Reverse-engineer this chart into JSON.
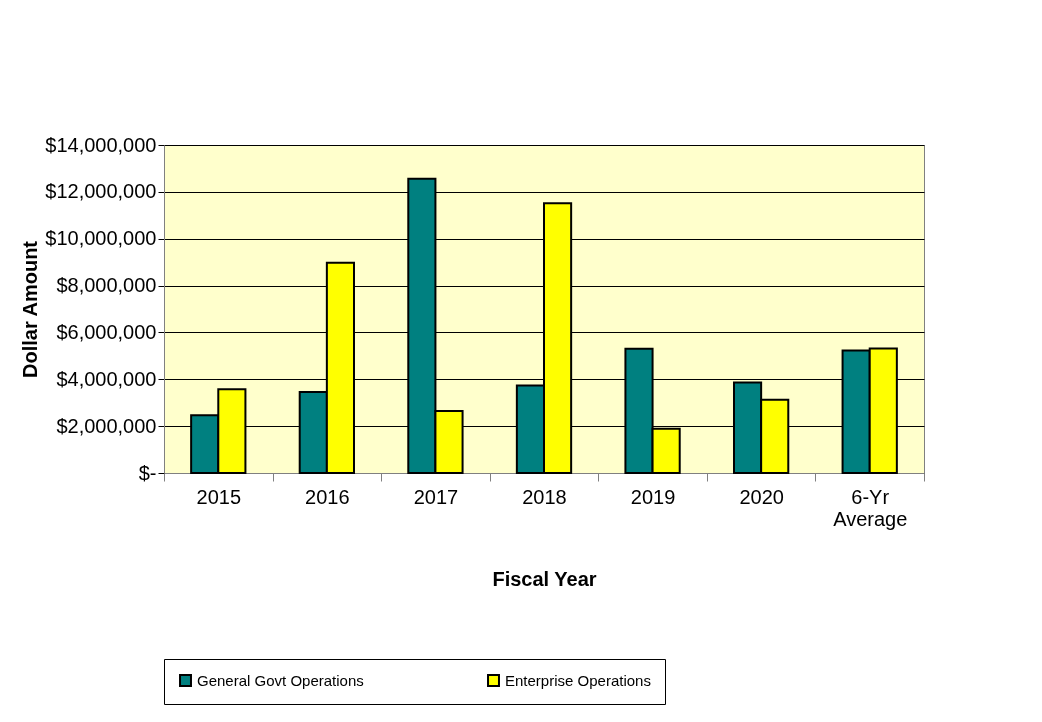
{
  "chart_data": {
    "type": "bar",
    "xlabel": "Fiscal Year",
    "ylabel": "Dollar Amount",
    "categories": [
      "2015",
      "2016",
      "2017",
      "2018",
      "2019",
      "2020",
      "6-Yr Average"
    ],
    "series": [
      {
        "name": "General Govt Operations",
        "color": "#008080",
        "values": [
          2460000,
          3460000,
          12560000,
          3730000,
          5300000,
          3860000,
          5230000
        ]
      },
      {
        "name": "Enterprise Operations",
        "color": "#ffff00",
        "values": [
          3580000,
          8970000,
          2650000,
          11510000,
          1890000,
          3130000,
          5310000
        ]
      }
    ],
    "ylim": [
      0,
      14000000
    ],
    "yticks": [
      {
        "value": 0,
        "label": "$-"
      },
      {
        "value": 2000000,
        "label": "$2,000,000"
      },
      {
        "value": 4000000,
        "label": "$4,000,000"
      },
      {
        "value": 6000000,
        "label": "$6,000,000"
      },
      {
        "value": 8000000,
        "label": "$8,000,000"
      },
      {
        "value": 10000000,
        "label": "$10,000,000"
      },
      {
        "value": 12000000,
        "label": "$12,000,000"
      },
      {
        "value": 14000000,
        "label": "$14,000,000"
      }
    ],
    "grid": "y",
    "legend": "bottom"
  }
}
